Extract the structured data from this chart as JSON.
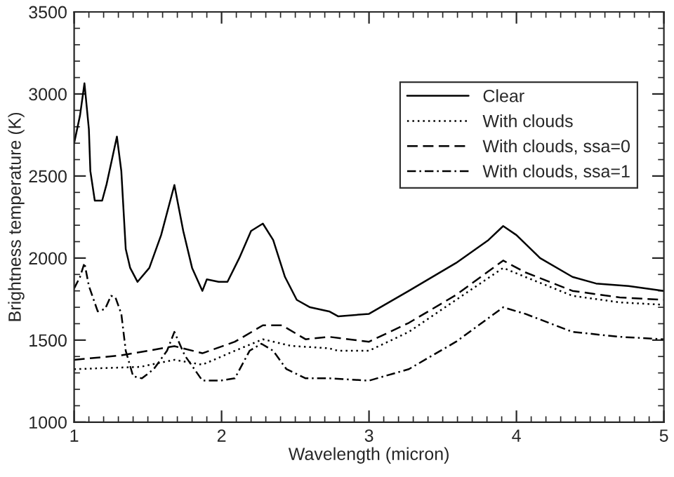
{
  "chart_data": {
    "type": "line",
    "xlabel": "Wavelength (micron)",
    "ylabel": "Brightness temperature (K)",
    "xlim": [
      1,
      5
    ],
    "ylim": [
      1000,
      3500
    ],
    "xticks": [
      1,
      2,
      3,
      4,
      5
    ],
    "yticks": [
      1000,
      1500,
      2000,
      2500,
      3000,
      3500
    ],
    "grid": false,
    "legend": "top right",
    "marker": "none",
    "series": [
      {
        "name": "Clear",
        "color": "#000000",
        "line_style": "solid",
        "x": [
          1.0,
          1.04,
          1.07,
          1.1,
          1.11,
          1.14,
          1.19,
          1.22,
          1.26,
          1.29,
          1.32,
          1.35,
          1.38,
          1.43,
          1.51,
          1.59,
          1.68,
          1.74,
          1.8,
          1.87,
          1.9,
          1.98,
          2.04,
          2.12,
          2.2,
          2.28,
          2.35,
          2.43,
          2.51,
          2.6,
          2.73,
          2.79,
          3.0,
          3.27,
          3.59,
          3.81,
          3.91,
          4.0,
          4.16,
          4.38,
          4.54,
          4.76,
          5.0
        ],
        "values": [
          2700,
          2870,
          3065,
          2785,
          2530,
          2350,
          2350,
          2450,
          2615,
          2740,
          2530,
          2055,
          1940,
          1855,
          1940,
          2140,
          2445,
          2165,
          1940,
          1800,
          1870,
          1855,
          1855,
          2000,
          2165,
          2210,
          2110,
          1885,
          1745,
          1700,
          1675,
          1645,
          1660,
          1800,
          1970,
          2110,
          2195,
          2140,
          2000,
          1885,
          1845,
          1830,
          1800
        ]
      },
      {
        "name": "With clouds",
        "color": "#000000",
        "line_style": "dotted",
        "x": [
          1.0,
          1.45,
          1.68,
          1.87,
          2.09,
          2.28,
          2.47,
          2.73,
          2.79,
          3.0,
          3.27,
          3.59,
          3.91,
          4.06,
          4.38,
          4.7,
          5.0
        ],
        "values": [
          1323,
          1337,
          1380,
          1350,
          1435,
          1505,
          1465,
          1450,
          1435,
          1435,
          1550,
          1745,
          1940,
          1885,
          1770,
          1730,
          1715
        ]
      },
      {
        "name": "With clouds, ssa=0",
        "color": "#000000",
        "line_style": "dashed",
        "x": [
          1.0,
          1.32,
          1.68,
          1.87,
          2.09,
          2.28,
          2.41,
          2.57,
          2.73,
          3.0,
          3.27,
          3.59,
          3.91,
          4.06,
          4.38,
          4.7,
          5.0
        ],
        "values": [
          1380,
          1407,
          1463,
          1420,
          1490,
          1590,
          1590,
          1505,
          1520,
          1490,
          1605,
          1775,
          1985,
          1913,
          1800,
          1760,
          1745
        ]
      },
      {
        "name": "With clouds, ssa=1",
        "color": "#000000",
        "line_style": "dashdot",
        "x": [
          1.0,
          1.04,
          1.07,
          1.1,
          1.16,
          1.21,
          1.25,
          1.28,
          1.32,
          1.35,
          1.4,
          1.46,
          1.54,
          1.63,
          1.68,
          1.75,
          1.87,
          1.99,
          2.09,
          2.19,
          2.27,
          2.35,
          2.44,
          2.57,
          2.73,
          3.0,
          3.27,
          3.59,
          3.91,
          4.06,
          4.38,
          4.7,
          5.0
        ],
        "values": [
          1815,
          1885,
          1970,
          1830,
          1675,
          1690,
          1770,
          1760,
          1660,
          1435,
          1280,
          1267,
          1323,
          1435,
          1550,
          1407,
          1253,
          1253,
          1267,
          1435,
          1478,
          1435,
          1323,
          1267,
          1267,
          1253,
          1323,
          1490,
          1700,
          1660,
          1550,
          1520,
          1505
        ]
      }
    ]
  }
}
